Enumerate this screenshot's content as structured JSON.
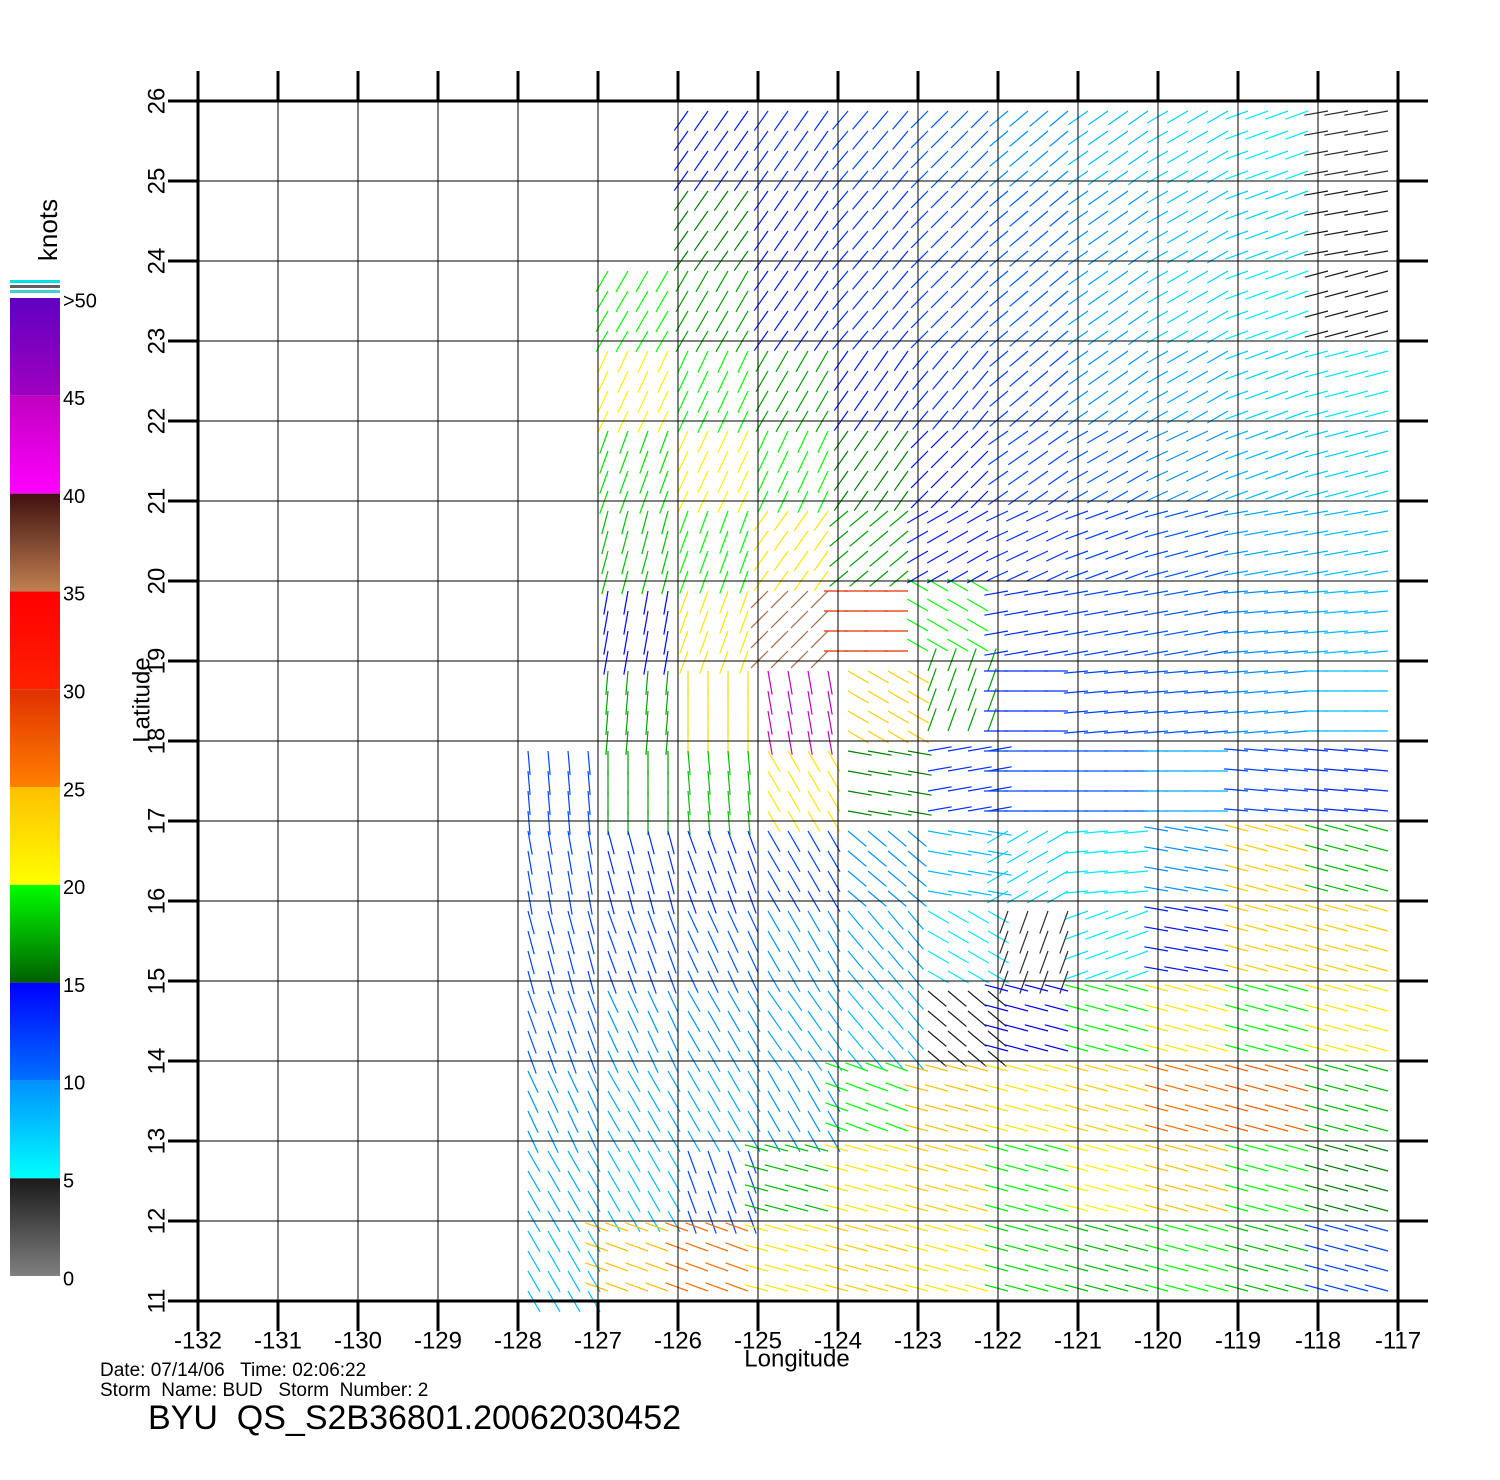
{
  "chart_data": {
    "type": "vector",
    "title": "BYU  QS_S2B36801.20062030452",
    "date_line": "Date: 07/14/06   Time: 02:06:22",
    "storm_line": "Storm  Name: BUD   Storm  Number: 2",
    "xlabel": "Longitude",
    "ylabel": "Latitude",
    "xlim": [
      -132,
      -117
    ],
    "ylim": [
      11,
      26
    ],
    "xticks": [
      -132,
      -131,
      -130,
      -129,
      -128,
      -127,
      -126,
      -125,
      -124,
      -123,
      -122,
      -121,
      -120,
      -119,
      -118,
      -117
    ],
    "yticks": [
      11,
      12,
      13,
      14,
      15,
      16,
      17,
      18,
      19,
      20,
      21,
      22,
      23,
      24,
      25,
      26
    ],
    "grid": true,
    "colorbar": {
      "label": "knots",
      "ticks": [
        0,
        5,
        10,
        15,
        20,
        25,
        30,
        35,
        40,
        45,
        {
          "value": 50,
          "label": ">50"
        }
      ],
      "colors": [
        [
          "#808080",
          "#1a1a1a"
        ],
        [
          "#00ffff",
          "#0090ff"
        ],
        [
          "#0070ff",
          "#0000ff"
        ],
        [
          "#006000",
          "#00ff00"
        ],
        [
          "#ffff00",
          "#ffc000"
        ],
        [
          "#ff8000",
          "#e03000"
        ],
        [
          "#ff2000",
          "#ff0000"
        ],
        [
          "#c08050",
          "#401010"
        ],
        [
          "#ff00ff",
          "#c000c0"
        ],
        [
          "#a000c0",
          "#6000c0"
        ]
      ]
    },
    "field": {
      "lon": [
        -127.5,
        -126.5,
        -125.5,
        -124.5,
        -123.5,
        -122.5,
        -121.5,
        -120.5,
        -119.5,
        -118.5,
        -117.5
      ],
      "lat": [
        25.5,
        24.5,
        23.5,
        22.5,
        21.5,
        20.5,
        19.5,
        18.5,
        17.5,
        16.5,
        15.5,
        14.5,
        13.5,
        12.5,
        11.5
      ],
      "speed": [
        [
          null,
          null,
          14,
          13,
          12,
          11,
          10,
          8,
          7,
          6,
          4
        ],
        [
          null,
          null,
          16,
          14,
          13,
          12,
          11,
          10,
          8,
          7,
          5
        ],
        [
          null,
          20,
          17,
          14,
          13,
          12,
          11,
          9,
          7,
          6,
          5
        ],
        [
          null,
          21,
          20,
          17,
          14,
          13,
          12,
          10,
          9,
          7,
          6
        ],
        [
          null,
          19,
          21,
          20,
          16,
          14,
          12,
          11,
          10,
          8,
          7
        ],
        [
          null,
          18,
          20,
          22,
          17,
          14,
          13,
          12,
          11,
          9,
          8
        ],
        [
          null,
          15,
          22,
          36,
          30,
          20,
          13,
          12,
          11,
          10,
          8
        ],
        [
          null,
          17,
          23,
          45,
          24,
          17,
          13,
          12,
          11,
          10,
          8
        ],
        [
          12,
          17,
          18,
          22,
          16,
          13,
          12,
          11,
          9,
          12,
          13
        ],
        [
          12,
          13,
          13,
          12,
          10,
          8,
          7,
          6,
          10,
          24,
          18
        ],
        [
          12,
          12,
          11,
          10,
          9,
          6,
          4,
          6,
          14,
          24,
          24
        ],
        [
          11,
          10,
          10,
          9,
          8,
          5,
          15,
          20,
          22,
          20,
          22
        ],
        [
          10,
          9,
          9,
          10,
          20,
          25,
          22,
          24,
          26,
          27,
          18
        ],
        [
          9,
          8,
          12,
          18,
          22,
          24,
          20,
          21,
          25,
          20,
          16
        ],
        [
          8,
          25,
          26,
          22,
          24,
          22,
          19,
          18,
          20,
          18,
          12
        ]
      ],
      "direction": [
        [
          null,
          null,
          215,
          215,
          220,
          225,
          230,
          235,
          240,
          250,
          260
        ],
        [
          null,
          null,
          215,
          215,
          220,
          225,
          230,
          235,
          240,
          250,
          260
        ],
        [
          null,
          210,
          210,
          215,
          220,
          225,
          230,
          235,
          240,
          250,
          255
        ],
        [
          null,
          205,
          205,
          210,
          215,
          220,
          230,
          235,
          240,
          250,
          255
        ],
        [
          null,
          200,
          205,
          205,
          215,
          225,
          235,
          240,
          245,
          250,
          255
        ],
        [
          null,
          195,
          200,
          215,
          230,
          240,
          245,
          250,
          255,
          260,
          260
        ],
        [
          null,
          190,
          200,
          225,
          270,
          300,
          260,
          260,
          260,
          265,
          265
        ],
        [
          null,
          185,
          180,
          170,
          120,
          20,
          270,
          265,
          265,
          265,
          270
        ],
        [
          175,
          180,
          175,
          150,
          100,
          80,
          270,
          270,
          270,
          275,
          275
        ],
        [
          170,
          165,
          160,
          150,
          130,
          100,
          240,
          265,
          280,
          285,
          285
        ],
        [
          165,
          160,
          155,
          150,
          140,
          120,
          200,
          250,
          280,
          285,
          285
        ],
        [
          160,
          155,
          150,
          145,
          140,
          130,
          285,
          285,
          285,
          285,
          285
        ],
        [
          155,
          150,
          150,
          150,
          290,
          285,
          285,
          285,
          285,
          285,
          285
        ],
        [
          150,
          150,
          160,
          285,
          285,
          285,
          285,
          285,
          285,
          285,
          285
        ],
        [
          150,
          290,
          290,
          285,
          285,
          285,
          285,
          285,
          285,
          285,
          285
        ]
      ]
    }
  }
}
